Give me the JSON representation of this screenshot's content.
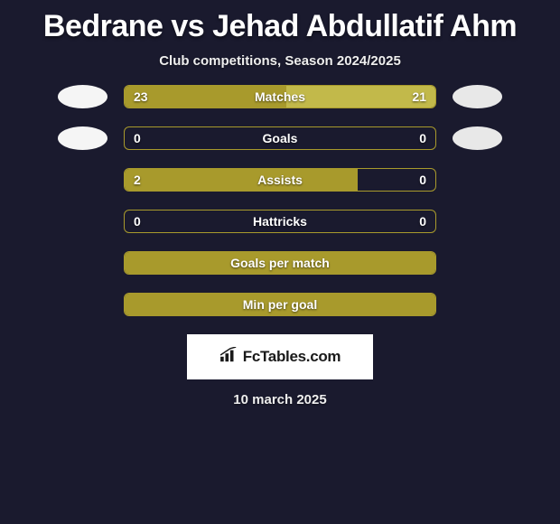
{
  "title": "Bedrane vs Jehad Abdullatif Ahm",
  "subtitle": "Club competitions, Season 2024/2025",
  "date": "10 march 2025",
  "brand": {
    "text": "FcTables.com"
  },
  "colors": {
    "background": "#1a1a2e",
    "bar_border": "#a89a2c",
    "player1_bar": "#a89a2c",
    "player2_bar": "#c2b94a",
    "badge1": "#f5f5f5",
    "badge2": "#e8e8e8",
    "brand_bg": "#ffffff"
  },
  "rows": [
    {
      "label": "Matches",
      "p1_value": "23",
      "p2_value": "21",
      "p1_fill_pct": 52,
      "p2_fill_pct": 48,
      "show_badges": true
    },
    {
      "label": "Goals",
      "p1_value": "0",
      "p2_value": "0",
      "p1_fill_pct": 0,
      "p2_fill_pct": 0,
      "show_badges": true
    },
    {
      "label": "Assists",
      "p1_value": "2",
      "p2_value": "0",
      "p1_fill_pct": 75,
      "p2_fill_pct": 0,
      "show_badges": false
    },
    {
      "label": "Hattricks",
      "p1_value": "0",
      "p2_value": "0",
      "p1_fill_pct": 0,
      "p2_fill_pct": 0,
      "show_badges": false
    },
    {
      "label": "Goals per match",
      "p1_value": "",
      "p2_value": "",
      "p1_fill_pct": 100,
      "p2_fill_pct": 0,
      "show_badges": false,
      "single_color": true
    },
    {
      "label": "Min per goal",
      "p1_value": "",
      "p2_value": "",
      "p1_fill_pct": 100,
      "p2_fill_pct": 0,
      "show_badges": false,
      "single_color": true
    }
  ]
}
